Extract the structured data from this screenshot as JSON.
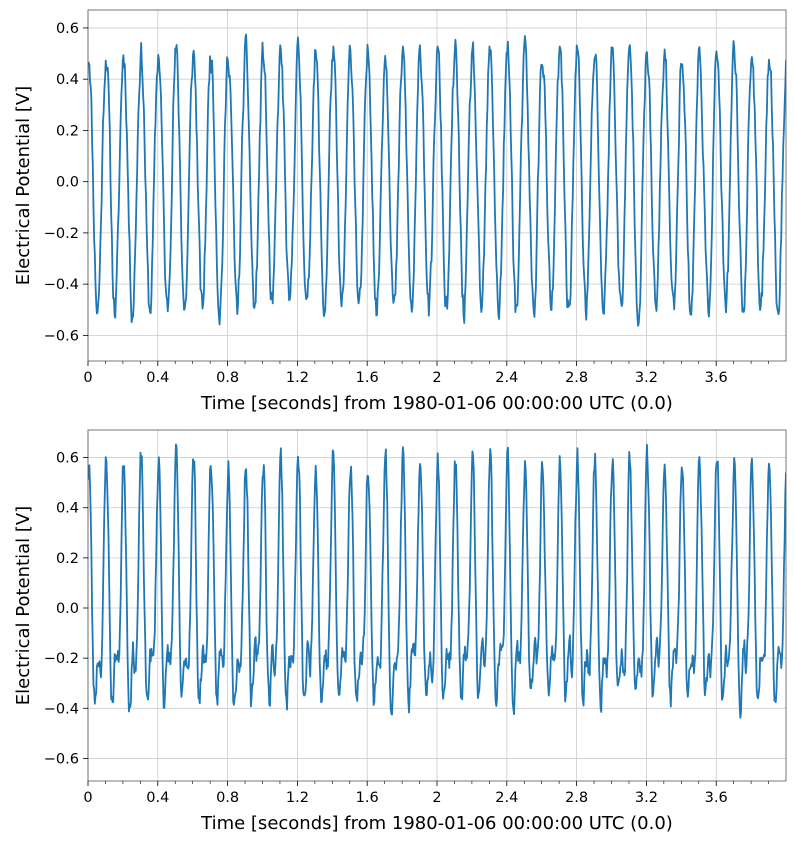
{
  "figure": {
    "background": "#ffffff",
    "line_color": "#1f77b4",
    "grid_color": "#cccccc"
  },
  "chart_data": [
    {
      "type": "line",
      "title": "",
      "xlabel": "Time [seconds] from 1980-01-06 00:00:00 UTC (0.0)",
      "ylabel": "Electrical Potential [V]",
      "xlim": [
        0,
        4
      ],
      "ylim": [
        -0.7,
        0.67
      ],
      "xticks": [
        0,
        0.4,
        0.8,
        1.2,
        1.6,
        2,
        2.4,
        2.8,
        3.2,
        3.6
      ],
      "xtick_labels": [
        "0",
        "0.4",
        "0.8",
        "1.2",
        "1.6",
        "2",
        "2.4",
        "2.8",
        "3.2",
        "3.6"
      ],
      "yticks": [
        -0.6,
        -0.4,
        -0.2,
        0.0,
        0.2,
        0.4,
        0.6
      ],
      "ytick_labels": [
        "−0.6",
        "−0.4",
        "−0.2",
        "0.0",
        "0.2",
        "0.4",
        "0.6"
      ],
      "grid": true,
      "series": [
        {
          "signal": {
            "components": [
              {
                "amplitude": 0.5,
                "frequency_hz": 10,
                "phase": 1.3
              }
            ],
            "noise_amplitude": 0.05,
            "seed": 11,
            "duration_s": 4,
            "sample_rate_hz": 256
          }
        }
      ]
    },
    {
      "type": "line",
      "title": "",
      "xlabel": "Time [seconds] from 1980-01-06 00:00:00 UTC (0.0)",
      "ylabel": "Electrical Potential [V]",
      "xlim": [
        0,
        4
      ],
      "ylim": [
        -0.69,
        0.71
      ],
      "xticks": [
        0,
        0.4,
        0.8,
        1.2,
        1.6,
        2,
        2.4,
        2.8,
        3.2,
        3.6
      ],
      "xtick_labels": [
        "0",
        "0.4",
        "0.8",
        "1.2",
        "1.6",
        "2",
        "2.4",
        "2.8",
        "3.2",
        "3.6"
      ],
      "yticks": [
        -0.6,
        -0.4,
        -0.2,
        0.0,
        0.2,
        0.4,
        0.6
      ],
      "ytick_labels": [
        "−0.6",
        "−0.4",
        "−0.2",
        "0.0",
        "0.2",
        "0.4",
        "0.6"
      ],
      "grid": true,
      "series": [
        {
          "signal": {
            "components": [
              {
                "amplitude": 0.4,
                "frequency_hz": 10,
                "phase": 1.4
              },
              {
                "amplitude": 0.2,
                "frequency_hz": 20,
                "phase": 0.8
              }
            ],
            "noise_amplitude": 0.05,
            "seed": 23,
            "duration_s": 4,
            "sample_rate_hz": 256
          }
        }
      ]
    }
  ]
}
